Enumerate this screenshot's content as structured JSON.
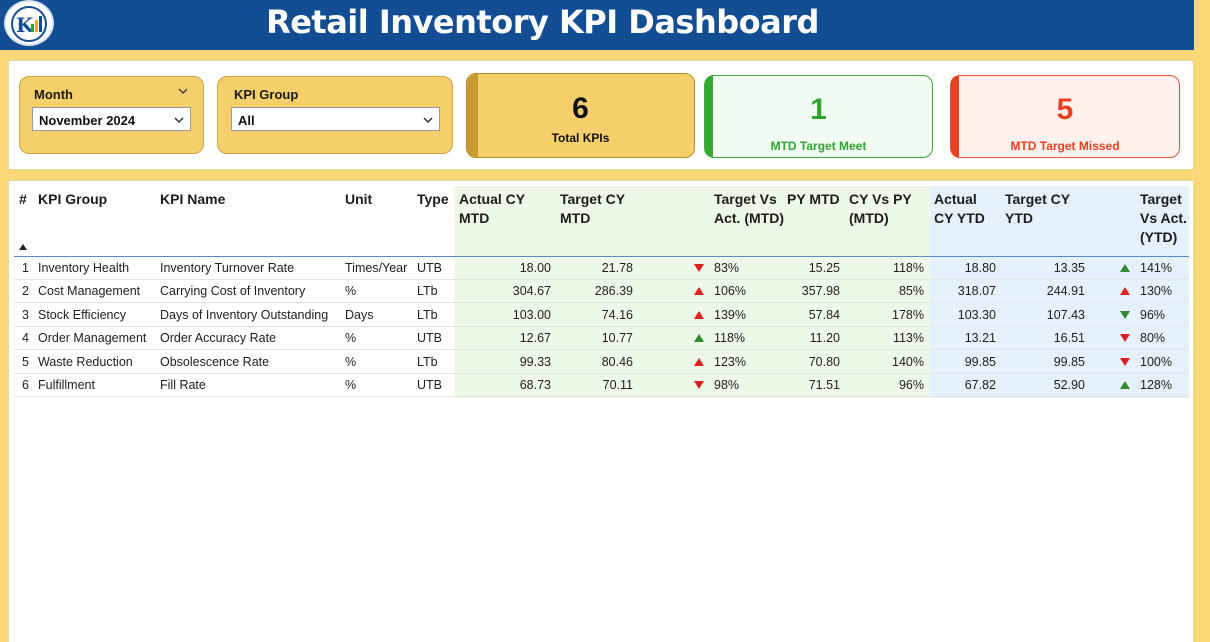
{
  "header": {
    "title": "Retail Inventory KPI Dashboard"
  },
  "filters": {
    "month": {
      "label": "Month",
      "value": "November 2024"
    },
    "kpi_group": {
      "label": "KPI Group",
      "value": "All"
    }
  },
  "cards": {
    "total": {
      "value": "6",
      "label": "Total KPIs"
    },
    "meet": {
      "value": "1",
      "label": "MTD Target Meet"
    },
    "missed": {
      "value": "5",
      "label": "MTD Target Missed"
    }
  },
  "colors": {
    "header": "#134e95",
    "background": "#fbd877",
    "up": "#2e8b2e",
    "down": "#e02020",
    "meet": "#2fa52f",
    "missed": "#e8401f"
  },
  "table": {
    "columns": {
      "num": "#",
      "group": "KPI Group",
      "name": "KPI Name",
      "unit": "Unit",
      "type": "Type",
      "actual_mtd": "Actual CY MTD",
      "target_mtd": "Target CY MTD",
      "tva_mtd": "Target Vs Act. (MTD)",
      "py_mtd": "PY MTD",
      "cy_vs_py": "CY Vs PY (MTD)",
      "actual_ytd": "Actual CY YTD",
      "target_ytd": "Target CY YTD",
      "tva_ytd": "Target Vs Act. (YTD)"
    },
    "rows": [
      {
        "num": "1",
        "group": "Inventory Health",
        "name": "Inventory Turnover Rate",
        "unit": "Times/Year",
        "type": "UTB",
        "actual_mtd": "18.00",
        "target_mtd": "21.78",
        "mtd_arrow": "down",
        "tva_mtd": "83%",
        "py_mtd": "15.25",
        "cy_vs_py": "118%",
        "actual_ytd": "18.80",
        "target_ytd": "13.35",
        "ytd_arrow": "up",
        "tva_ytd": "141%"
      },
      {
        "num": "2",
        "group": "Cost Management",
        "name": "Carrying Cost of Inventory",
        "unit": "%",
        "type": "LTb",
        "actual_mtd": "304.67",
        "target_mtd": "286.39",
        "mtd_arrow": "up-red",
        "tva_mtd": "106%",
        "py_mtd": "357.98",
        "cy_vs_py": "85%",
        "actual_ytd": "318.07",
        "target_ytd": "244.91",
        "ytd_arrow": "up-red",
        "tva_ytd": "130%"
      },
      {
        "num": "3",
        "group": "Stock Efficiency",
        "name": "Days of Inventory Outstanding",
        "unit": "Days",
        "type": "LTb",
        "actual_mtd": "103.00",
        "target_mtd": "74.16",
        "mtd_arrow": "up-red",
        "tva_mtd": "139%",
        "py_mtd": "57.84",
        "cy_vs_py": "178%",
        "actual_ytd": "103.30",
        "target_ytd": "107.43",
        "ytd_arrow": "down-green",
        "tva_ytd": "96%"
      },
      {
        "num": "4",
        "group": "Order Management",
        "name": "Order Accuracy Rate",
        "unit": "%",
        "type": "UTB",
        "actual_mtd": "12.67",
        "target_mtd": "10.77",
        "mtd_arrow": "up",
        "tva_mtd": "118%",
        "py_mtd": "11.20",
        "cy_vs_py": "113%",
        "actual_ytd": "13.21",
        "target_ytd": "16.51",
        "ytd_arrow": "down",
        "tva_ytd": "80%"
      },
      {
        "num": "5",
        "group": "Waste Reduction",
        "name": "Obsolescence Rate",
        "unit": "%",
        "type": "LTb",
        "actual_mtd": "99.33",
        "target_mtd": "80.46",
        "mtd_arrow": "up-red",
        "tva_mtd": "123%",
        "py_mtd": "70.80",
        "cy_vs_py": "140%",
        "actual_ytd": "99.85",
        "target_ytd": "99.85",
        "ytd_arrow": "down",
        "tva_ytd": "100%"
      },
      {
        "num": "6",
        "group": "Fulfillment",
        "name": "Fill Rate",
        "unit": "%",
        "type": "UTB",
        "actual_mtd": "68.73",
        "target_mtd": "70.11",
        "mtd_arrow": "down",
        "tva_mtd": "98%",
        "py_mtd": "71.51",
        "cy_vs_py": "96%",
        "actual_ytd": "67.82",
        "target_ytd": "52.90",
        "ytd_arrow": "up",
        "tva_ytd": "128%"
      }
    ]
  }
}
